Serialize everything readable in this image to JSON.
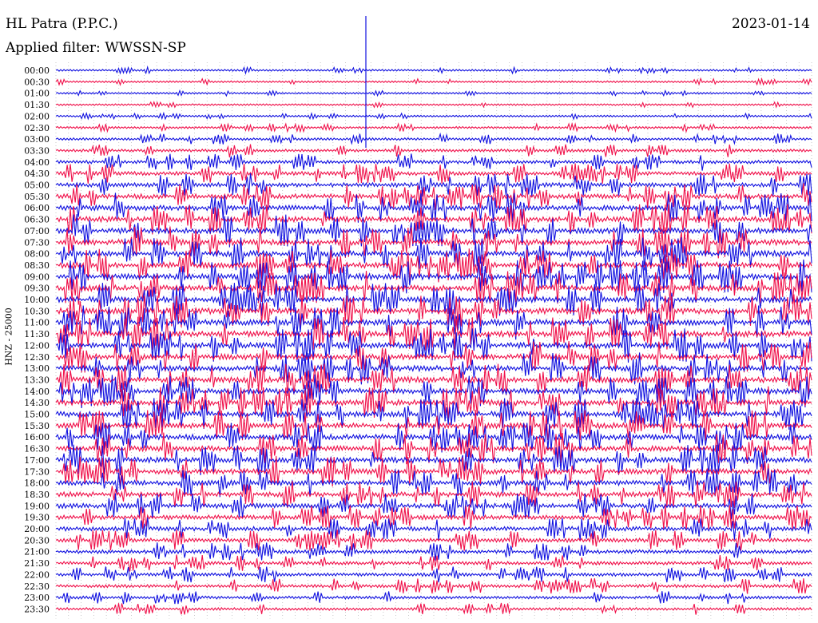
{
  "header": {
    "station": "HL Patra (P.P.C.)",
    "date": "2023-01-14",
    "filter_label": "Applied filter: WWSSN-SP"
  },
  "axis": {
    "ylabel": "HNZ - 25000"
  },
  "colors": {
    "even_trace": "#1010e0",
    "odd_trace": "#f0104a",
    "grid": "#a6a6a6"
  },
  "chart_data": {
    "type": "line",
    "title": "HL Patra (P.P.C.)",
    "subtitle": "Applied filter: WWSSN-SP",
    "ylabel": "HNZ - 25000",
    "xlabel": "",
    "grid": true,
    "categories": [
      "00:00",
      "00:30",
      "01:00",
      "01:30",
      "02:00",
      "02:30",
      "03:00",
      "03:30",
      "04:00",
      "04:30",
      "05:00",
      "05:30",
      "06:00",
      "06:30",
      "07:00",
      "07:30",
      "08:00",
      "08:30",
      "09:00",
      "09:30",
      "10:00",
      "10:30",
      "11:00",
      "11:30",
      "12:00",
      "12:30",
      "13:00",
      "13:30",
      "14:00",
      "14:30",
      "15:00",
      "15:30",
      "16:00",
      "16:30",
      "17:00",
      "17:30",
      "18:00",
      "18:30",
      "19:00",
      "19:30",
      "20:00",
      "20:30",
      "21:00",
      "21:30",
      "22:00",
      "22:30",
      "23:00",
      "23:30"
    ],
    "activity": [
      0.15,
      0.15,
      0.12,
      0.13,
      0.14,
      0.2,
      0.28,
      0.35,
      0.45,
      0.55,
      0.65,
      0.72,
      0.8,
      0.85,
      0.88,
      0.9,
      0.92,
      0.92,
      0.93,
      0.93,
      0.93,
      0.93,
      0.92,
      0.92,
      0.92,
      0.9,
      0.9,
      0.9,
      0.9,
      0.88,
      0.88,
      0.88,
      0.86,
      0.85,
      0.85,
      0.82,
      0.8,
      0.76,
      0.72,
      0.68,
      0.62,
      0.58,
      0.5,
      0.45,
      0.42,
      0.4,
      0.35,
      0.32
    ],
    "series_colors": [
      "blue",
      "red"
    ]
  }
}
